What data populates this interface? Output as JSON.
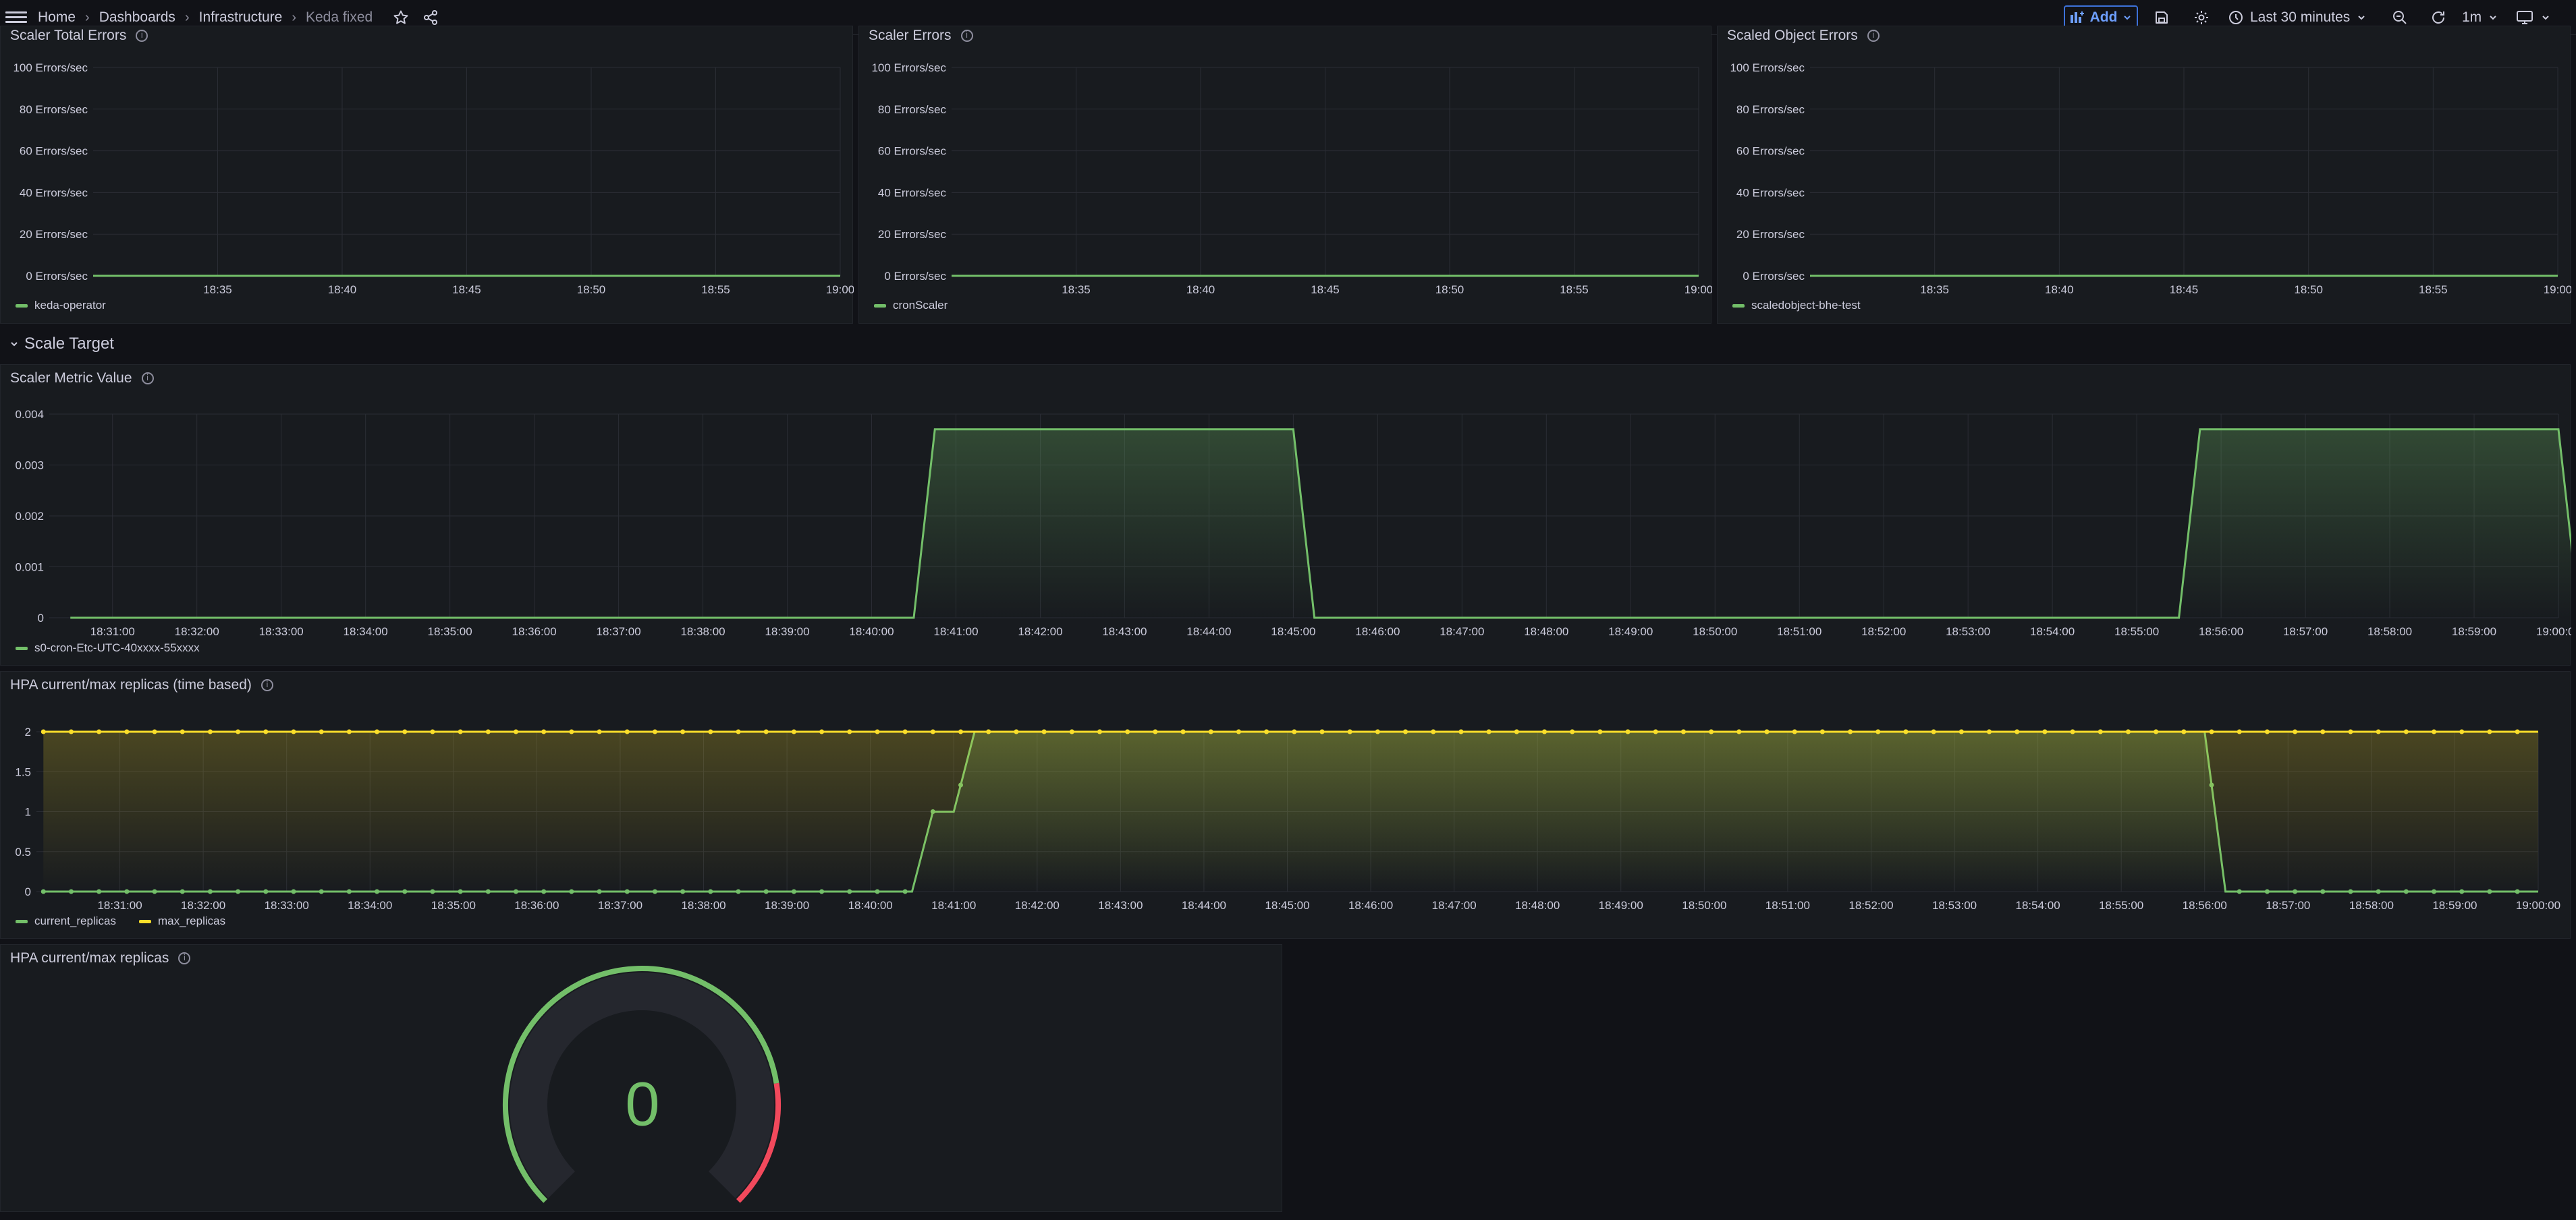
{
  "topbar": {
    "breadcrumbs": [
      "Home",
      "Dashboards",
      "Infrastructure"
    ],
    "current": "Keda fixed",
    "add_label": "Add",
    "time_range": "Last 30 minutes",
    "refresh_interval": "1m",
    "icons": [
      "menu-icon",
      "star-icon",
      "share-icon",
      "save-icon",
      "gear-icon",
      "clock-icon",
      "zoom-out-icon",
      "refresh-icon",
      "tv-icon"
    ]
  },
  "colors": {
    "green": "#73bf69",
    "yellow": "#fade2a",
    "red": "#f2495c",
    "blue": "#6e9fff"
  },
  "row": {
    "title": "Scale Target"
  },
  "panels": {
    "scaler_total_errors": {
      "title": "Scaler Total Errors"
    },
    "scaler_errors": {
      "title": "Scaler Errors"
    },
    "scaled_object_errors": {
      "title": "Scaled Object Errors"
    },
    "scaler_metric_value": {
      "title": "Scaler Metric Value"
    },
    "hpa_time": {
      "title": "HPA current/max replicas (time based)"
    },
    "hpa_gauge": {
      "title": "HPA current/max replicas",
      "value": "0"
    }
  },
  "chart_data": [
    {
      "type": "line",
      "title": "Scaler Total Errors",
      "y_ticks": [
        "0 Errors/sec",
        "20 Errors/sec",
        "40 Errors/sec",
        "60 Errors/sec",
        "80 Errors/sec",
        "100 Errors/sec"
      ],
      "x_ticks": [
        "18:35",
        "18:40",
        "18:45",
        "18:50",
        "18:55",
        "19:00"
      ],
      "ylim": [
        0,
        100
      ],
      "series": [
        {
          "name": "keda-operator",
          "x": [
            "18:30",
            "19:00"
          ],
          "values": [
            0,
            0
          ]
        }
      ]
    },
    {
      "type": "line",
      "title": "Scaler Errors",
      "y_ticks": [
        "0 Errors/sec",
        "20 Errors/sec",
        "40 Errors/sec",
        "60 Errors/sec",
        "80 Errors/sec",
        "100 Errors/sec"
      ],
      "x_ticks": [
        "18:35",
        "18:40",
        "18:45",
        "18:50",
        "18:55",
        "19:00"
      ],
      "ylim": [
        0,
        100
      ],
      "series": [
        {
          "name": "cronScaler",
          "x": [
            "18:30",
            "19:00"
          ],
          "values": [
            0,
            0
          ]
        }
      ]
    },
    {
      "type": "line",
      "title": "Scaled Object Errors",
      "y_ticks": [
        "0 Errors/sec",
        "20 Errors/sec",
        "40 Errors/sec",
        "60 Errors/sec",
        "80 Errors/sec",
        "100 Errors/sec"
      ],
      "x_ticks": [
        "18:35",
        "18:40",
        "18:45",
        "18:50",
        "18:55",
        "19:00"
      ],
      "ylim": [
        0,
        100
      ],
      "series": [
        {
          "name": "scaledobject-bhe-test",
          "x": [
            "18:30",
            "19:00"
          ],
          "values": [
            0,
            0
          ]
        }
      ]
    },
    {
      "type": "area",
      "title": "Scaler Metric Value",
      "y_ticks": [
        "0",
        "0.001",
        "0.002",
        "0.003",
        "0.004"
      ],
      "x_ticks": [
        "18:31:00",
        "18:32:00",
        "18:33:00",
        "18:34:00",
        "18:35:00",
        "18:36:00",
        "18:37:00",
        "18:38:00",
        "18:39:00",
        "18:40:00",
        "18:41:00",
        "18:42:00",
        "18:43:00",
        "18:44:00",
        "18:45:00",
        "18:46:00",
        "18:47:00",
        "18:48:00",
        "18:49:00",
        "18:50:00",
        "18:51:00",
        "18:52:00",
        "18:53:00",
        "18:54:00",
        "18:55:00",
        "18:56:00",
        "18:57:00",
        "18:58:00",
        "18:59:00",
        "19:00:00"
      ],
      "ylim": [
        0,
        0.004
      ],
      "series": [
        {
          "name": "s0-cron-Etc-UTC-40xxxx-55xxxx",
          "x": [
            "18:30:30",
            "18:40:30",
            "18:40:45",
            "18:45:00",
            "18:45:15",
            "18:55:30",
            "18:55:45",
            "19:00:00",
            "19:00:15"
          ],
          "values": [
            0,
            0,
            0.0037,
            0.0037,
            0,
            0,
            0.0037,
            0.0037,
            0
          ]
        }
      ]
    },
    {
      "type": "area",
      "title": "HPA current/max replicas (time based)",
      "y_ticks": [
        "0",
        "0.5",
        "1",
        "1.5",
        "2"
      ],
      "x_ticks": [
        "18:31:00",
        "18:32:00",
        "18:33:00",
        "18:34:00",
        "18:35:00",
        "18:36:00",
        "18:37:00",
        "18:38:00",
        "18:39:00",
        "18:40:00",
        "18:41:00",
        "18:42:00",
        "18:43:00",
        "18:44:00",
        "18:45:00",
        "18:46:00",
        "18:47:00",
        "18:48:00",
        "18:49:00",
        "18:50:00",
        "18:51:00",
        "18:52:00",
        "18:53:00",
        "18:54:00",
        "18:55:00",
        "18:56:00",
        "18:57:00",
        "18:58:00",
        "18:59:00",
        "19:00:00"
      ],
      "ylim": [
        0,
        2
      ],
      "series": [
        {
          "name": "current_replicas",
          "x": [
            "18:30:05",
            "18:40:30",
            "18:40:45",
            "18:41:00",
            "18:41:15",
            "18:56:00",
            "18:56:15",
            "19:00:00"
          ],
          "values": [
            0,
            0,
            1,
            1,
            2,
            2,
            0,
            0
          ]
        },
        {
          "name": "max_replicas",
          "x": [
            "18:30:05",
            "19:00:00"
          ],
          "values": [
            2,
            2
          ]
        }
      ]
    },
    {
      "type": "gauge",
      "title": "HPA current/max replicas",
      "value": 0,
      "min": 0,
      "max": 2
    }
  ]
}
